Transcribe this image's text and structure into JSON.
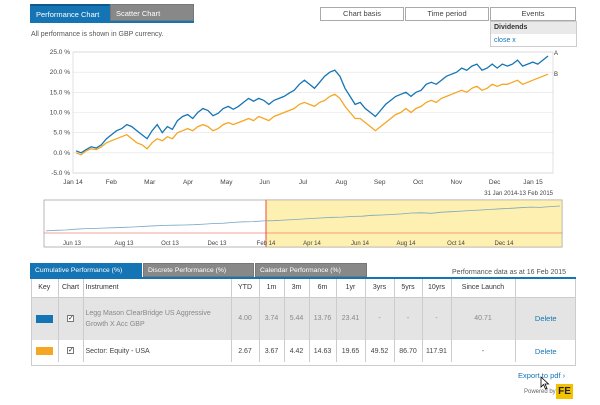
{
  "chart_tabs": [
    {
      "label": "Performance Chart",
      "active": true
    },
    {
      "label": "Scatter Chart",
      "active": false
    }
  ],
  "controls": {
    "chart_basis": "Chart basis",
    "time_period": "Time period",
    "events": "Events"
  },
  "dividends": {
    "title": "Dividends",
    "close": "close x"
  },
  "currency_note": "All performance is shown in GBP currency.",
  "chart_data": {
    "type": "line",
    "ylim": [
      -5,
      25
    ],
    "yticks": [
      "25.0 %",
      "20.0 %",
      "15.0 %",
      "10.0 %",
      "5.0 %",
      "0.0 %",
      "-5.0 %"
    ],
    "ytick_values": [
      25,
      20,
      15,
      10,
      5,
      0,
      -5
    ],
    "x_labels": [
      "Jan 14",
      "Feb",
      "Mar",
      "Apr",
      "May",
      "Jun",
      "Jul",
      "Aug",
      "Sep",
      "Oct",
      "Nov",
      "Dec",
      "Jan 15"
    ],
    "date_range": "31 Jan 2014-13 Feb 2015",
    "series": [
      {
        "name": "A",
        "color": "#1575b4",
        "values": [
          0.5,
          0,
          0.8,
          1.5,
          1.2,
          2,
          3.5,
          4.5,
          5.5,
          6,
          7,
          6.5,
          5.5,
          4.5,
          3.5,
          5.5,
          7,
          5,
          6.5,
          5.8,
          8,
          9,
          9.5,
          8.5,
          10,
          11,
          10.5,
          9.2,
          9.8,
          11,
          11.5,
          10.8,
          11.5,
          12.5,
          13.5,
          12.8,
          13.5,
          13,
          12,
          13,
          13.5,
          14,
          14.8,
          15.5,
          17,
          18,
          17,
          16,
          17.5,
          19,
          20,
          20.5,
          19,
          16,
          14,
          12,
          12.5,
          11,
          10,
          9,
          10.5,
          12,
          13,
          14,
          14.5,
          15,
          14,
          15,
          15.5,
          17,
          17.5,
          17,
          18,
          19,
          19.5,
          20,
          21,
          20.5,
          21.5,
          22,
          20.5,
          21,
          22,
          21,
          22,
          21.5,
          22,
          23,
          21.5,
          22,
          22.5,
          22,
          23,
          24
        ]
      },
      {
        "name": "B",
        "color": "#f5a623",
        "values": [
          0,
          -0.5,
          0.5,
          1,
          0.8,
          1.5,
          2.5,
          3,
          3.5,
          4,
          4.5,
          3.5,
          2.5,
          2,
          1,
          2.5,
          3.5,
          3,
          4,
          3.5,
          5,
          5.5,
          6,
          5.5,
          6.5,
          7,
          6.5,
          5.5,
          6,
          7,
          7.5,
          7,
          7.5,
          8,
          8.5,
          8,
          9,
          8.5,
          8,
          9,
          9.5,
          10,
          10.5,
          11,
          12,
          12.5,
          12,
          11.5,
          12.5,
          13,
          14,
          14.5,
          13.5,
          11.5,
          10,
          8.5,
          8.5,
          7.5,
          6.5,
          5.5,
          6.5,
          7.5,
          8.5,
          9.5,
          10,
          11,
          10,
          11,
          11.5,
          12.5,
          13,
          12.5,
          13.5,
          14,
          14.5,
          15,
          15.5,
          15,
          16,
          16.5,
          15.5,
          16,
          17,
          16.5,
          17,
          17,
          17.5,
          18,
          17,
          17.5,
          18,
          18.5,
          19,
          19.5
        ]
      }
    ]
  },
  "navigator": {
    "x_labels": [
      "Jun 13",
      "Aug 13",
      "Oct 13",
      "Dec 13",
      "Feb 14",
      "Apr 14",
      "Jun 14",
      "Aug 14",
      "Oct 14",
      "Dec 14"
    ],
    "fill": "#fdf0b0",
    "values": [
      1,
      1.5,
      1.8,
      2.5,
      3,
      3.2,
      3.5,
      3.8,
      4.2,
      4.5,
      5,
      5.5,
      5.8,
      6,
      6.2,
      6.5,
      7,
      7.5,
      7.8,
      8.5,
      9,
      9.2,
      9.8,
      10,
      10.5,
      11,
      11.5,
      12,
      12.5,
      13,
      13.2,
      13.8,
      14,
      14.8,
      15,
      15.5,
      16,
      16.8,
      17,
      16.5,
      17.5,
      18,
      18.5,
      19,
      19.5,
      20,
      20.5,
      21,
      21.5,
      22,
      21.8,
      22.5,
      23
    ]
  },
  "performance_tabs": [
    {
      "label": "Cumulative Performance (%)",
      "active": true
    },
    {
      "label": "Discrete Performance (%)",
      "active": false
    },
    {
      "label": "Calendar Performance (%)",
      "active": false
    }
  ],
  "performance_date": "Performance data as at 16 Feb 2015",
  "table": {
    "headers": {
      "key": "Key",
      "chart": "Chart",
      "instrument": "Instrument",
      "ytd": "YTD",
      "m1": "1m",
      "m3": "3m",
      "m6": "6m",
      "y1": "1yr",
      "y3": "3yrs",
      "y5": "5yrs",
      "y10": "10yrs",
      "launch": "Since Launch"
    },
    "rows": [
      {
        "key_color": "#1575b4",
        "checked": "✓",
        "instrument": "Legg Mason ClearBridge US Aggressive Growth X Acc GBP",
        "ytd": "4.00",
        "m1": "3.74",
        "m3": "5.44",
        "m6": "13.76",
        "y1": "23.41",
        "y3": "-",
        "y5": "-",
        "y10": "-",
        "launch": "40.71",
        "action": "Delete"
      },
      {
        "key_color": "#f5a623",
        "checked": "✓",
        "instrument": "Sector: Equity - USA",
        "ytd": "2.67",
        "m1": "3.67",
        "m3": "4.42",
        "m6": "14.63",
        "y1": "19.65",
        "y3": "49.52",
        "y5": "86.70",
        "y10": "117.91",
        "launch": "-",
        "action": "Delete"
      }
    ]
  },
  "footer": {
    "export": "Export to pdf",
    "export_icon": "›",
    "powered_by": "Powered by",
    "logo": "FE"
  }
}
